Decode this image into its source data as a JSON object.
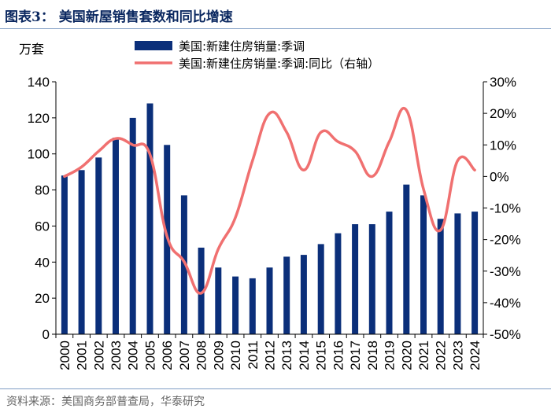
{
  "figure": {
    "title": "图表3：  美国新屋销售套数和同比增速",
    "source": "资料来源：美国商务部普查局，华泰研究"
  },
  "chart_data": {
    "type": "bar",
    "title": "美国新屋销售套数和同比增速",
    "ylabel": "万套",
    "categories": [
      "2000",
      "2001",
      "2002",
      "2003",
      "2004",
      "2005",
      "2006",
      "2007",
      "2008",
      "2009",
      "2010",
      "2011",
      "2012",
      "2013",
      "2014",
      "2015",
      "2016",
      "2017",
      "2018",
      "2019",
      "2020",
      "2021",
      "2022",
      "2023",
      "2024"
    ],
    "ylim": [
      0,
      140
    ],
    "yticks": [
      0,
      20,
      40,
      60,
      80,
      100,
      120,
      140
    ],
    "y2lim": [
      -50,
      30
    ],
    "y2ticks": [
      -50,
      -40,
      -30,
      -20,
      -10,
      0,
      10,
      20,
      30
    ],
    "y2tick_labels": [
      "-50%",
      "-40%",
      "-30%",
      "-20%",
      "-10%",
      "0%",
      "10%",
      "20%",
      "30%"
    ],
    "legend_position": "top",
    "colors": {
      "bar": "#0b2f7a",
      "line": "#f07070",
      "axis": "#000000"
    },
    "series": [
      {
        "name": "美国:新建住房销量:季调",
        "type": "bar",
        "axis": "left",
        "values": [
          88,
          91,
          98,
          109,
          120,
          128,
          105,
          77,
          48,
          37,
          32,
          31,
          37,
          43,
          44,
          50,
          56,
          61,
          61,
          68,
          83,
          77,
          64,
          67,
          68
        ]
      },
      {
        "name": "美国:新建住房销量:季调:同比（右轴）",
        "type": "line",
        "axis": "right",
        "values": [
          0,
          3,
          8,
          12,
          10,
          7,
          -19,
          -27,
          -37,
          -23,
          -13,
          5,
          20,
          14,
          2,
          14,
          11,
          8,
          0,
          11,
          21,
          -4,
          -17,
          5,
          2
        ]
      }
    ]
  }
}
